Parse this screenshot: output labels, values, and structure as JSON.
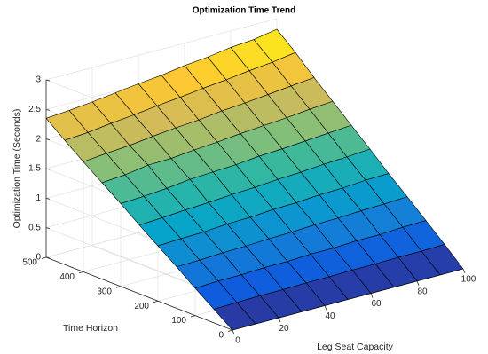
{
  "chart_data": {
    "type": "surface",
    "title": "Optimization Time Trend",
    "xlabel": "Leg Seat Capacity",
    "ylabel": "Time Horizon",
    "zlabel": "Optimization Time (Seconds)",
    "x": [
      0,
      10,
      20,
      30,
      40,
      50,
      60,
      70,
      80,
      90,
      100
    ],
    "y": [
      0,
      50,
      100,
      150,
      200,
      250,
      300,
      350,
      400,
      450,
      500
    ],
    "z": [
      [
        0,
        0,
        0,
        0,
        0,
        0,
        0,
        0,
        0,
        0,
        0
      ],
      [
        0.23,
        0.24,
        0.25,
        0.25,
        0.26,
        0.26,
        0.27,
        0.27,
        0.28,
        0.28,
        0.29
      ],
      [
        0.46,
        0.48,
        0.48,
        0.5,
        0.5,
        0.52,
        0.52,
        0.54,
        0.54,
        0.56,
        0.57
      ],
      [
        0.7,
        0.71,
        0.73,
        0.74,
        0.76,
        0.77,
        0.79,
        0.8,
        0.82,
        0.83,
        0.85
      ],
      [
        0.93,
        0.95,
        0.96,
        0.99,
        1.0,
        1.03,
        1.04,
        1.07,
        1.08,
        1.11,
        1.12
      ],
      [
        1.16,
        1.18,
        1.21,
        1.23,
        1.26,
        1.28,
        1.31,
        1.33,
        1.36,
        1.38,
        1.41
      ],
      [
        1.4,
        1.42,
        1.45,
        1.5,
        1.52,
        1.54,
        1.58,
        1.6,
        1.63,
        1.66,
        1.69
      ],
      [
        1.63,
        1.66,
        1.72,
        1.73,
        1.77,
        1.8,
        1.84,
        1.87,
        1.9,
        1.94,
        1.97
      ],
      [
        1.86,
        1.9,
        1.93,
        1.98,
        2.02,
        2.05,
        2.1,
        2.13,
        2.17,
        2.21,
        2.25
      ],
      [
        2.1,
        2.13,
        2.18,
        2.22,
        2.27,
        2.31,
        2.36,
        2.4,
        2.45,
        2.49,
        2.55
      ],
      [
        2.35,
        2.38,
        2.42,
        2.47,
        2.52,
        2.56,
        2.62,
        2.66,
        2.72,
        2.75,
        2.82
      ]
    ],
    "xlim": [
      0,
      100
    ],
    "xticks": [
      0,
      20,
      40,
      60,
      80,
      100
    ],
    "ylim": [
      0,
      500
    ],
    "yticks": [
      0,
      100,
      200,
      300,
      400,
      500
    ],
    "zlim": [
      0,
      3
    ],
    "zticks": [
      0,
      0.5,
      1,
      1.5,
      2,
      2.5,
      3
    ],
    "grid": true,
    "colormap": [
      "#352a87",
      "#0f5cdd",
      "#1481d6",
      "#06a4ca",
      "#2eb7a4",
      "#87bf77",
      "#d1bb59",
      "#fec832",
      "#f9fb0e"
    ],
    "edge_color": "#000000"
  }
}
